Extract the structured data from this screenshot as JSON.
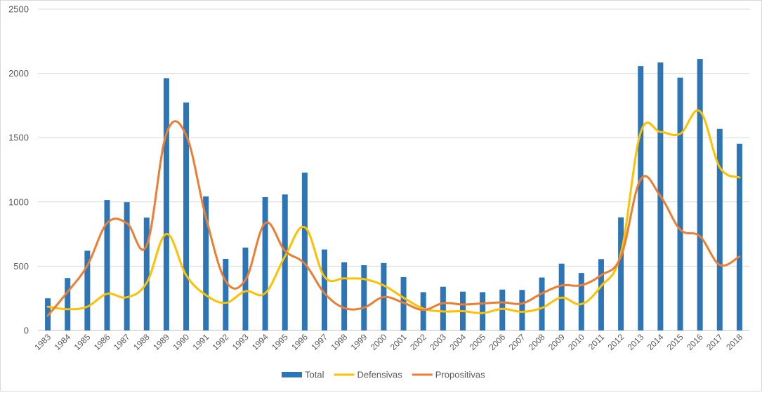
{
  "chart_data": {
    "type": "bar",
    "title": "",
    "xlabel": "",
    "ylabel": "",
    "ylim": [
      0,
      2500
    ],
    "yticks": [
      0,
      500,
      1000,
      1500,
      2000,
      2500
    ],
    "grid": true,
    "legend_position": "bottom",
    "categories": [
      "1983",
      "1984",
      "1985",
      "1986",
      "1987",
      "1988",
      "1989",
      "1990",
      "1991",
      "1992",
      "1993",
      "1994",
      "1995",
      "1996",
      "1997",
      "1998",
      "1999",
      "2000",
      "2001",
      "2002",
      "2003",
      "2004",
      "2005",
      "2006",
      "2007",
      "2008",
      "2009",
      "2010",
      "2011",
      "2012",
      "2013",
      "2014",
      "2015",
      "2016",
      "2017",
      "2018"
    ],
    "series": [
      {
        "name": "Total",
        "kind": "bar",
        "color": "#2e75b6",
        "values": [
          250,
          408,
          620,
          1015,
          998,
          878,
          1963,
          1773,
          1043,
          557,
          645,
          1037,
          1058,
          1228,
          630,
          530,
          508,
          525,
          415,
          298,
          340,
          302,
          298,
          318,
          315,
          412,
          520,
          447,
          555,
          880,
          2057,
          2085,
          1967,
          2112,
          1568,
          1453
        ]
      },
      {
        "name": "Defensivas",
        "kind": "line",
        "color": "#ffc000",
        "values": [
          185,
          165,
          185,
          285,
          258,
          370,
          750,
          430,
          275,
          215,
          305,
          290,
          575,
          803,
          418,
          405,
          400,
          350,
          255,
          170,
          148,
          150,
          135,
          168,
          145,
          175,
          255,
          205,
          345,
          600,
          1540,
          1545,
          1530,
          1705,
          1270,
          1190
        ]
      },
      {
        "name": "Propositivas",
        "kind": "line",
        "color": "#ed7d31",
        "values": [
          115,
          300,
          505,
          835,
          835,
          660,
          1530,
          1520,
          880,
          385,
          393,
          835,
          620,
          520,
          290,
          175,
          178,
          260,
          215,
          160,
          212,
          202,
          210,
          218,
          210,
          288,
          350,
          352,
          430,
          575,
          1175,
          1045,
          785,
          732,
          510,
          575
        ]
      }
    ]
  }
}
